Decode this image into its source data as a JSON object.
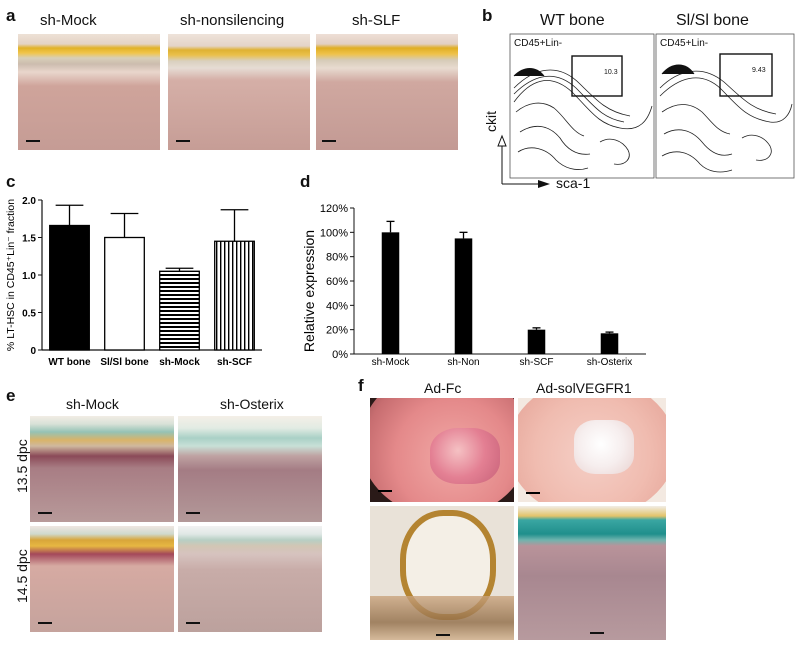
{
  "panels": {
    "a": {
      "label": "a",
      "captions": [
        "sh-Mock",
        "sh-nonsilencing",
        "sh-SLF"
      ],
      "images": [
        "bone-section-sh-mock",
        "bone-section-sh-nonsilencing",
        "bone-section-sh-slf"
      ]
    },
    "b": {
      "label": "b",
      "titles": [
        "WT bone",
        "Sl/Sl bone"
      ],
      "gate_label": "CD45+Lin-",
      "gate_values": [
        "10.3",
        "9.43"
      ],
      "y_axis": "ckit",
      "x_axis": "sca-1"
    },
    "c": {
      "label": "c"
    },
    "d": {
      "label": "d"
    },
    "e": {
      "label": "e",
      "captions": [
        "sh-Mock",
        "sh-Osterix"
      ],
      "row_labels": [
        "13.5 dpc",
        "14.5 dpc"
      ]
    },
    "f": {
      "label": "f",
      "captions": [
        "Ad-Fc",
        "Ad-solVEGFR1"
      ]
    }
  },
  "chart_data": [
    {
      "id": "c",
      "type": "bar",
      "categories": [
        "WT bone",
        "Sl/Sl bone",
        "sh-Mock",
        "sh-SCF"
      ],
      "values": [
        1.66,
        1.5,
        1.05,
        1.45
      ],
      "errors": [
        0.27,
        0.32,
        0.04,
        0.42
      ],
      "fills": [
        "solid-black",
        "white",
        "horizontal-stripes",
        "vertical-stripes"
      ],
      "ylabel": "% LT-HSC in CD45⁺Lin⁻ fraction",
      "ylim": [
        0,
        2.0
      ],
      "yticks": [
        "0",
        "0.5",
        "1.0",
        "1.5",
        "2.0"
      ],
      "grid": false
    },
    {
      "id": "d",
      "type": "bar",
      "categories": [
        "sh-Mock",
        "sh-Non",
        "sh-SCF",
        "sh-Osterix"
      ],
      "values": [
        100,
        95,
        20,
        17
      ],
      "errors": [
        9,
        5,
        1.5,
        1
      ],
      "ylabel": "Relative expression",
      "ylim": [
        0,
        120
      ],
      "yticks": [
        "0%",
        "20%",
        "40%",
        "60%",
        "80%",
        "100%",
        "120%"
      ],
      "grid": false
    }
  ],
  "colors": {
    "tissue": "#c9a39a",
    "bone_yellow": "#e0a81c",
    "teal": "#4aa6a0",
    "bar_black": "#000000"
  }
}
